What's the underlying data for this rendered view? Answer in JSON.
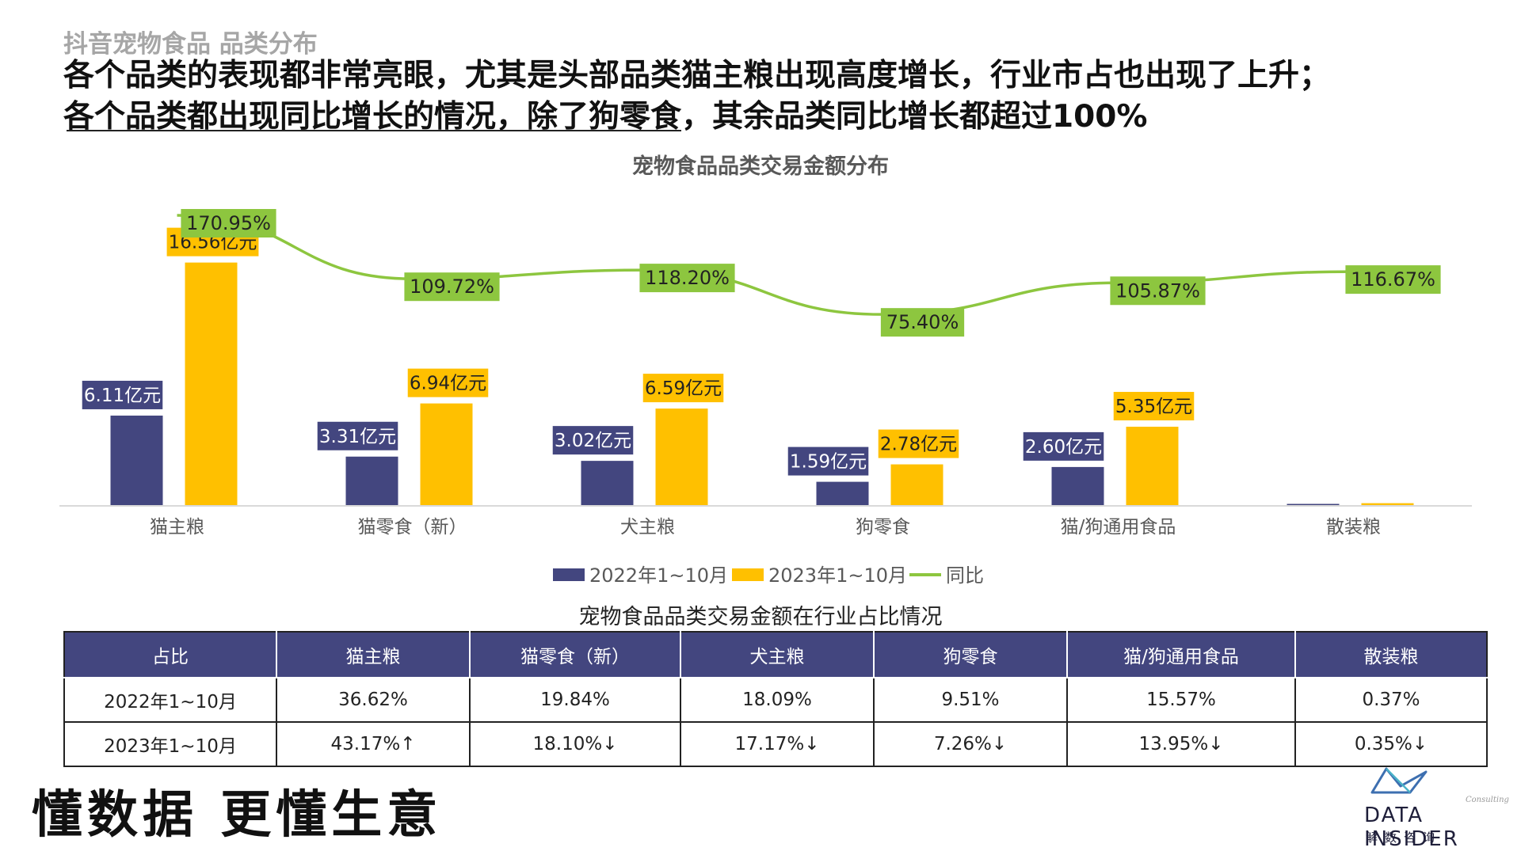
{
  "header": {
    "subtitle": "抖音宠物食品 品类分布",
    "headline_line1": "各个品类的表现都非常亮眼，尤其是头部品类猫主粮出现高度增长，行业市占也出现了上升；",
    "headline_line2": "各个品类都出现同比增长的情况，除了狗零食，其余品类同比增长都超过100%"
  },
  "chart_data": {
    "type": "bar",
    "title": "宠物食品品类交易金额分布",
    "categories": [
      "猫主粮",
      "猫零食（新）",
      "犬主粮",
      "狗零食",
      "猫/狗通用食品",
      "散装粮"
    ],
    "series": [
      {
        "name": "2022年1~10月",
        "values": [
          6.11,
          3.31,
          3.02,
          1.59,
          2.6,
          0.06
        ],
        "labels": [
          "6.11亿元",
          "3.31亿元",
          "3.02亿元",
          "1.59亿元",
          "2.60亿元",
          ""
        ],
        "color": "#43467f"
      },
      {
        "name": "2023年1~10月",
        "values": [
          16.56,
          6.94,
          6.59,
          2.78,
          5.35,
          0.13
        ],
        "labels": [
          "16.56亿元",
          "6.94亿元",
          "6.59亿元",
          "2.78亿元",
          "5.35亿元",
          ""
        ],
        "color": "#ffc000"
      },
      {
        "name": "同比",
        "type": "line",
        "values": [
          170.95,
          109.72,
          118.2,
          75.4,
          105.87,
          116.67
        ],
        "labels": [
          "170.95%",
          "109.72%",
          "118.20%",
          "75.40%",
          "105.87%",
          "116.67%"
        ],
        "color": "#8dc63f"
      }
    ],
    "unit": "亿元",
    "legend_position": "bottom",
    "grid": false
  },
  "table": {
    "title": "宠物食品品类交易金额在行业占比情况",
    "headers": [
      "占比",
      "猫主粮",
      "猫零食（新）",
      "犬主粮",
      "狗零食",
      "猫/狗通用食品",
      "散装粮"
    ],
    "rows": [
      [
        "2022年1~10月",
        "36.62%",
        "19.84%",
        "18.09%",
        "9.51%",
        "15.57%",
        "0.37%"
      ],
      [
        "2023年1~10月",
        "43.17%↑",
        "18.10%↓",
        "17.17%↓",
        "7.26%↓",
        "13.95%↓",
        "0.35%↓"
      ]
    ]
  },
  "footer": {
    "slogan": "懂数据 更懂生意",
    "logo_consulting": "Consulting",
    "logo_name": "DATA INSIDER",
    "logo_cn": "解数咨询"
  },
  "colors": {
    "bar_2022": "#43467f",
    "bar_2023": "#ffc000",
    "line_yoy": "#8dc63f",
    "table_header": "#43467f"
  }
}
